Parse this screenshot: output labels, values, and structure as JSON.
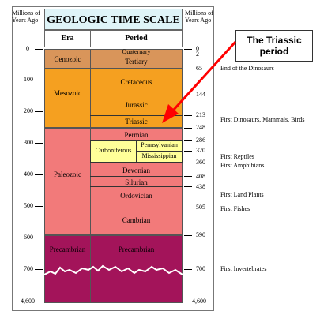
{
  "title": "GEOLOGIC TIME SCALE",
  "left_axis_label": "Millions of Years Ago",
  "right_axis_label": "Millions of Years Ago",
  "col_era": "Era",
  "col_period": "Period",
  "left_ticks": [
    "0",
    "100",
    "200",
    "300",
    "400",
    "500",
    "600",
    "700",
    "4,600"
  ],
  "right_ticks": [
    "0",
    "2",
    "65",
    "144",
    "213",
    "248",
    "286",
    "320",
    "360",
    "408",
    "438",
    "505",
    "590",
    "700",
    "4,600"
  ],
  "eras": [
    "Cenozoic",
    "Mesozoic",
    "Paleozoic",
    "Precambrian"
  ],
  "periods": [
    "Quaternary",
    "Tertiary",
    "Cretaceous",
    "Jurassic",
    "Triassic",
    "Permian",
    "Carboniferous",
    "Pennsylvanian",
    "Mississippian",
    "Devonian",
    "Silurian",
    "Ordovician",
    "Cambrian",
    "Precambrian"
  ],
  "events": [
    "End of the Dinosaurs",
    "First Dinosaurs, Mammals, Birds",
    "First Reptiles",
    "First Amphibians",
    "First Land Plants",
    "First Fishes",
    "First Invertebrates"
  ],
  "callout": [
    "The Triassic",
    "period"
  ],
  "colors": {
    "cenozoic": "#d9955a",
    "mesozoic": "#f5a020",
    "paleozoic": "#f27a7a",
    "precambrian": "#a3145a",
    "carboniferous": "#ffff99",
    "title_bg": "#dff4f8",
    "arrow": "#ff0000"
  }
}
